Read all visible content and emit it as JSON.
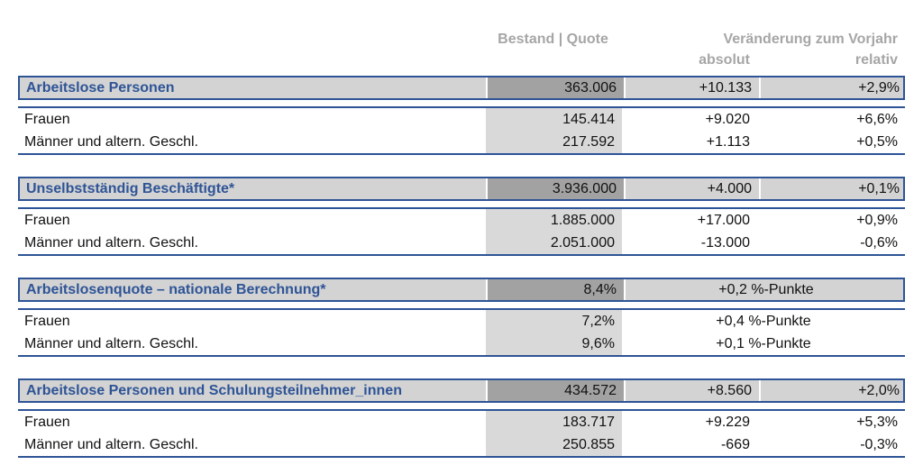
{
  "header": {
    "col_bestand": "Bestand | Quote",
    "col_change": "Veränderung zum Vorjahr",
    "col_absolut": "absolut",
    "col_relativ": "relativ"
  },
  "colors": {
    "accent_blue": "#2e5496",
    "section_fill": "#d3d3d3",
    "bestand_dark_fill": "#a2a2a2",
    "bestand_light_fill": "#d9d9d9",
    "header_text_gray": "#a6a6a6"
  },
  "sections": [
    {
      "label": "Arbeitslose Personen",
      "bestand": "363.006",
      "absolut": "+10.133",
      "relativ": "+2,9%",
      "rows": [
        {
          "label": "Frauen",
          "bestand": "145.414",
          "absolut": "+9.020",
          "relativ": "+6,6%"
        },
        {
          "label": "Männer und altern. Geschl.",
          "bestand": "217.592",
          "absolut": "+1.113",
          "relativ": "+0,5%"
        }
      ]
    },
    {
      "label": "Unselbstständig Beschäftigte*",
      "bestand": "3.936.000",
      "absolut": "+4.000",
      "relativ": "+0,1%",
      "rows": [
        {
          "label": "Frauen",
          "bestand": "1.885.000",
          "absolut": "+17.000",
          "relativ": "+0,9%"
        },
        {
          "label": "Männer und altern. Geschl.",
          "bestand": "2.051.000",
          "absolut": "-13.000",
          "relativ": "-0,6%"
        }
      ]
    },
    {
      "label": "Arbeitslosenquote – nationale Berechnung*",
      "bestand": "8,4%",
      "combined": "+0,2 %-Punkte",
      "rows": [
        {
          "label": "Frauen",
          "bestand": "7,2%",
          "combined": "+0,4 %-Punkte"
        },
        {
          "label": "Männer und altern. Geschl.",
          "bestand": "9,6%",
          "combined": "+0,1 %-Punkte"
        }
      ]
    },
    {
      "label": "Arbeitslose Personen und Schulungsteilnehmer_innen",
      "bestand": "434.572",
      "absolut": "+8.560",
      "relativ": "+2,0%",
      "rows": [
        {
          "label": "Frauen",
          "bestand": "183.717",
          "absolut": "+9.229",
          "relativ": "+5,3%"
        },
        {
          "label": "Männer und altern. Geschl.",
          "bestand": "250.855",
          "absolut": "-669",
          "relativ": "-0,3%"
        }
      ]
    }
  ]
}
